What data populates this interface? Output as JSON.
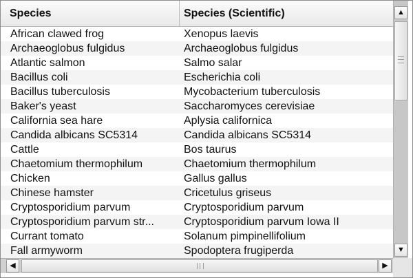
{
  "table": {
    "headers": [
      "Species",
      "Species (Scientific)"
    ],
    "rows": [
      [
        "African clawed frog",
        "Xenopus laevis"
      ],
      [
        "Archaeoglobus fulgidus",
        "Archaeoglobus fulgidus"
      ],
      [
        "Atlantic salmon",
        "Salmo salar"
      ],
      [
        "Bacillus coli",
        "Escherichia coli"
      ],
      [
        "Bacillus tuberculosis",
        "Mycobacterium tuberculosis"
      ],
      [
        "Baker's yeast",
        "Saccharomyces cerevisiae"
      ],
      [
        "California sea hare",
        "Aplysia californica"
      ],
      [
        "Candida albicans SC5314",
        "Candida albicans SC5314"
      ],
      [
        "Cattle",
        "Bos taurus"
      ],
      [
        "Chaetomium thermophilum",
        "Chaetomium thermophilum"
      ],
      [
        "Chicken",
        "Gallus gallus"
      ],
      [
        "Chinese hamster",
        "Cricetulus griseus"
      ],
      [
        "Cryptosporidium parvum",
        "Cryptosporidium parvum"
      ],
      [
        "Cryptosporidium parvum str...",
        "Cryptosporidium parvum Iowa II"
      ],
      [
        "Currant tomato",
        "Solanum pimpinellifolium"
      ],
      [
        "Fall armyworm",
        "Spodoptera frugiperda"
      ]
    ]
  },
  "scrollbars": {
    "up_icon": "▲",
    "down_icon": "▼",
    "left_icon": "◀",
    "right_icon": "▶"
  }
}
